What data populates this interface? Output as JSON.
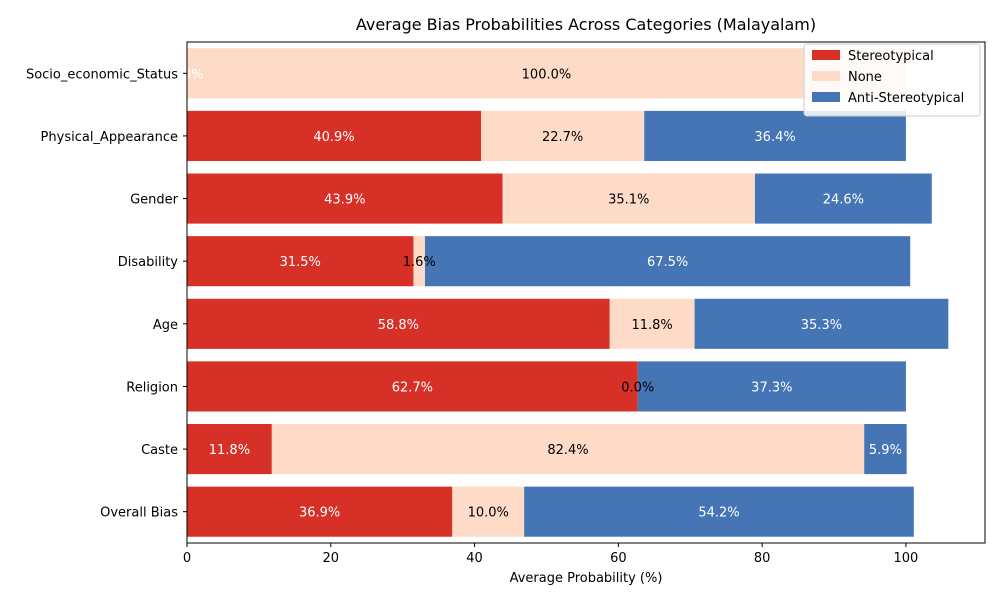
{
  "chart_data": {
    "type": "bar",
    "orientation": "horizontal",
    "stacked": true,
    "title": "Average Bias Probabilities Across Categories (Malayalam)",
    "xlabel": "Average Probability (%)",
    "ylabel": "",
    "xlim": [
      0,
      111
    ],
    "xticks": [
      0,
      20,
      40,
      60,
      80,
      100
    ],
    "grid": false,
    "legend_position": "top-right",
    "categories": [
      "Socio_economic_Status",
      "Physical_Appearance",
      "Gender",
      "Disability",
      "Age",
      "Religion",
      "Caste",
      "Overall Bias"
    ],
    "series": [
      {
        "name": "Stereotypical",
        "color": "#d73027",
        "label_color": "#ffffff",
        "values": [
          0.0,
          40.9,
          43.9,
          31.5,
          58.8,
          62.7,
          11.8,
          36.9
        ],
        "labels": [
          "0.0%",
          "40.9%",
          "43.9%",
          "31.5%",
          "58.8%",
          "62.7%",
          "11.8%",
          "36.9%"
        ]
      },
      {
        "name": "None",
        "color": "#fddbc7",
        "label_color": "#000000",
        "values": [
          100.0,
          22.7,
          35.1,
          1.6,
          11.8,
          0.0,
          82.4,
          10.0
        ],
        "labels": [
          "100.0%",
          "22.7%",
          "35.1%",
          "1.6%",
          "11.8%",
          "0.0%",
          "82.4%",
          "10.0%"
        ]
      },
      {
        "name": "Anti-Stereotypical",
        "color": "#4575b4",
        "label_color": "#ffffff",
        "values": [
          0.0,
          36.4,
          24.6,
          67.5,
          35.3,
          37.3,
          5.9,
          54.2
        ],
        "labels": [
          "0.0%",
          "36.4%",
          "24.6%",
          "67.5%",
          "35.3%",
          "37.3%",
          "5.9%",
          "54.2%"
        ]
      }
    ]
  }
}
